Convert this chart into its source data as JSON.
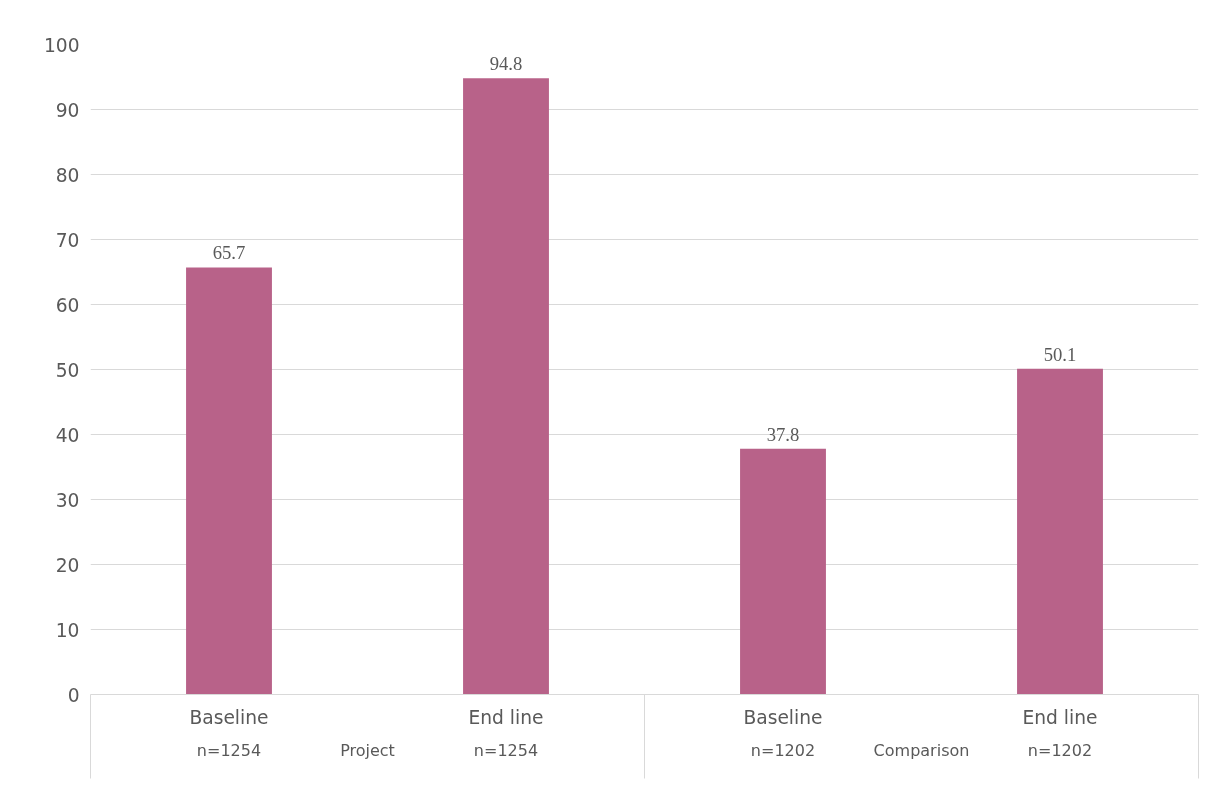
{
  "chart_data": {
    "type": "bar",
    "categories": [
      "Baseline",
      "End line",
      "Baseline",
      "End line"
    ],
    "values": [
      65.7,
      94.8,
      37.8,
      50.1
    ],
    "color": "#b86289",
    "ylim": [
      0,
      100
    ],
    "yticks": [
      0,
      10,
      20,
      30,
      40,
      50,
      60,
      70,
      80,
      90,
      100
    ],
    "grid": "y",
    "data_labels": true,
    "annotations": [
      "n=1254",
      "n=1254",
      "n=1202",
      "n=1202",
      "Project",
      "Comparison"
    ]
  }
}
